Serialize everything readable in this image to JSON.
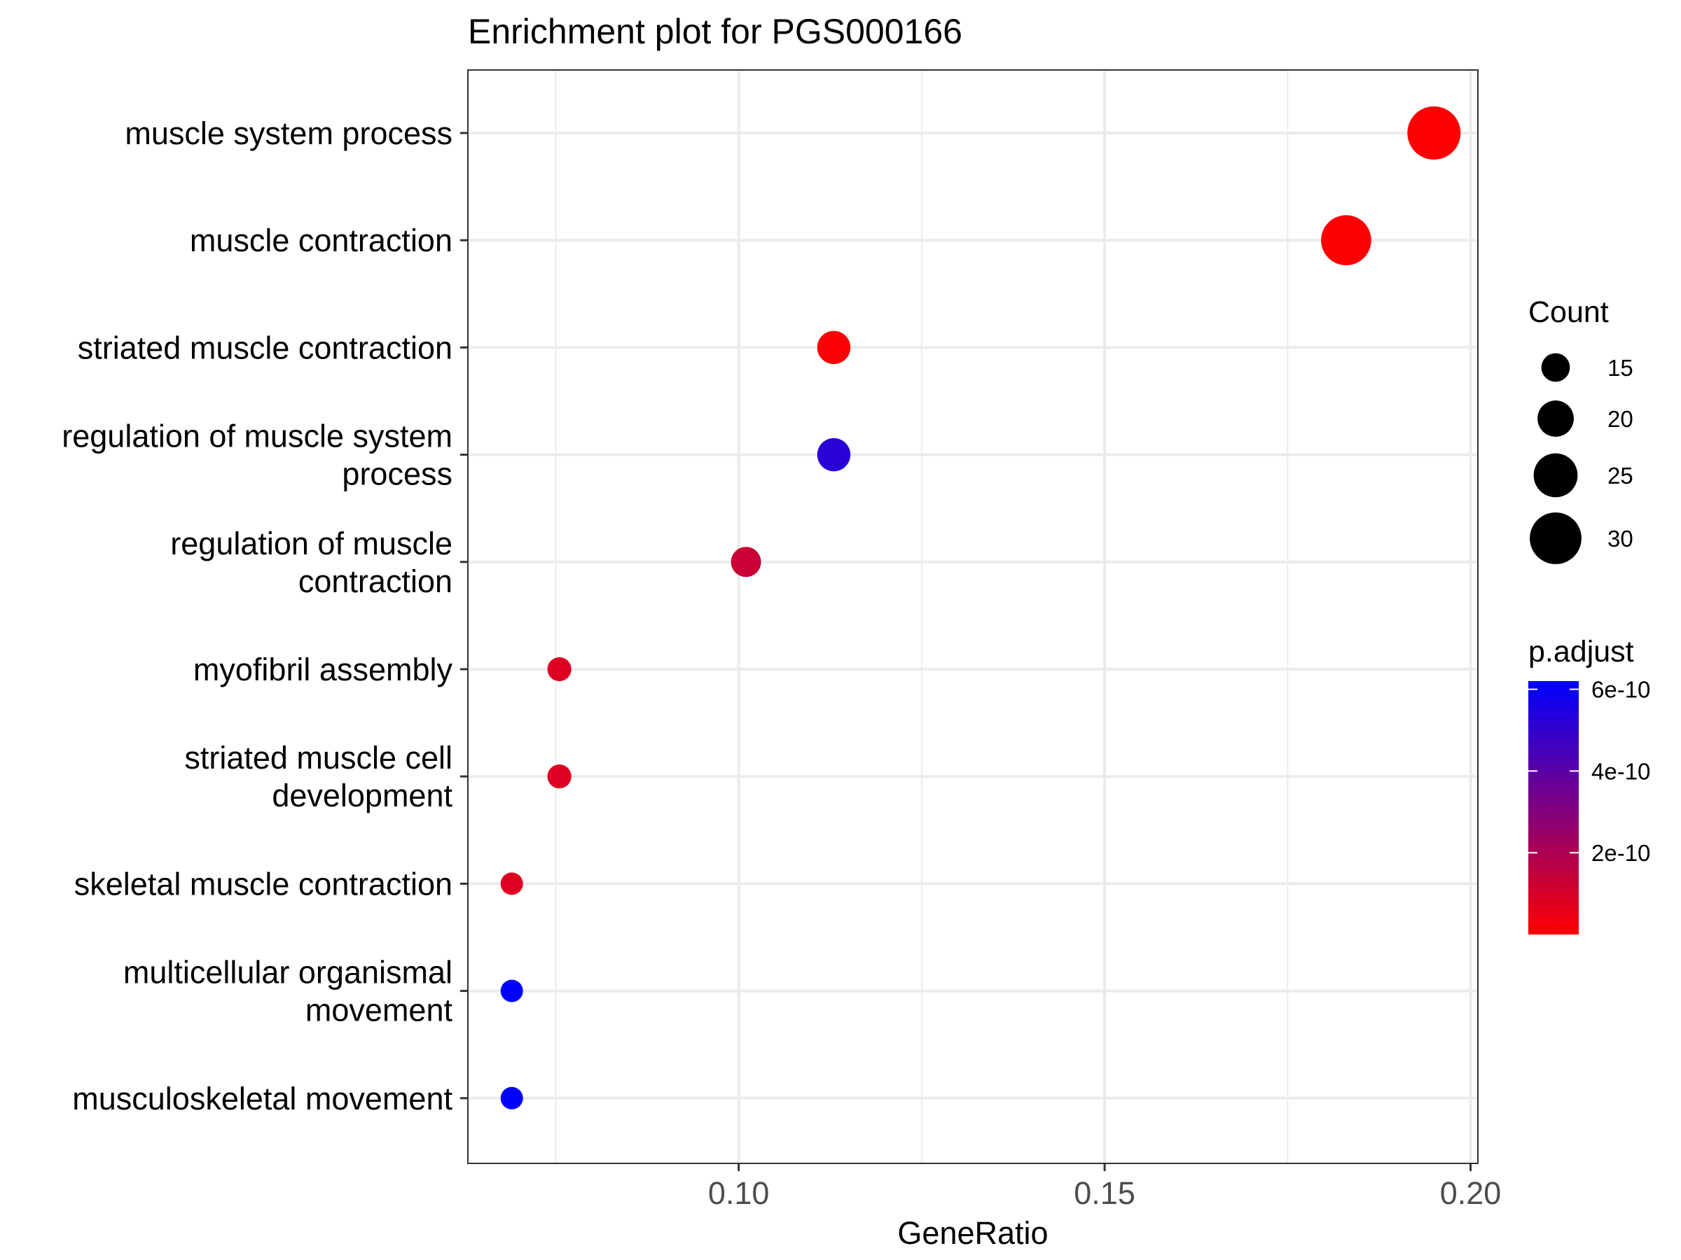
{
  "chart_data": {
    "type": "scatter",
    "title": "Enrichment plot for PGS000166",
    "xlabel": "GeneRatio",
    "ylabel": "",
    "xlim": [
      0.063,
      0.201
    ],
    "xticks": [
      0.1,
      0.15,
      0.2
    ],
    "xtick_labels": [
      "0.10",
      "0.15",
      "0.20"
    ],
    "grid": true,
    "categories": [
      "muscle system process",
      "muscle contraction",
      "striated muscle contraction",
      "regulation of muscle system process",
      "regulation of muscle contraction",
      "myofibril assembly",
      "striated muscle cell development",
      "skeletal muscle contraction",
      "multicellular organismal movement",
      "musculoskeletal movement"
    ],
    "category_label_lines": [
      [
        "muscle system process"
      ],
      [
        "muscle contraction"
      ],
      [
        "striated muscle contraction"
      ],
      [
        "regulation of muscle system",
        "process"
      ],
      [
        "regulation of muscle",
        "contraction"
      ],
      [
        "myofibril assembly"
      ],
      [
        "striated muscle cell",
        "development"
      ],
      [
        "skeletal muscle contraction"
      ],
      [
        "multicellular organismal",
        "movement"
      ],
      [
        "musculoskeletal movement"
      ]
    ],
    "points": [
      {
        "term": "muscle system process",
        "gene_ratio": 0.195,
        "count": 31,
        "p_adjust": 1e-12
      },
      {
        "term": "muscle contraction",
        "gene_ratio": 0.183,
        "count": 29,
        "p_adjust": 5e-12
      },
      {
        "term": "striated muscle contraction",
        "gene_ratio": 0.113,
        "count": 18,
        "p_adjust": 1e-11
      },
      {
        "term": "regulation of muscle system process",
        "gene_ratio": 0.113,
        "count": 18,
        "p_adjust": 5.2e-10
      },
      {
        "term": "regulation of muscle contraction",
        "gene_ratio": 0.101,
        "count": 16,
        "p_adjust": 1.3e-10
      },
      {
        "term": "myofibril assembly",
        "gene_ratio": 0.0755,
        "count": 12,
        "p_adjust": 8e-11
      },
      {
        "term": "striated muscle cell development",
        "gene_ratio": 0.0755,
        "count": 12,
        "p_adjust": 8e-11
      },
      {
        "term": "skeletal muscle contraction",
        "gene_ratio": 0.069,
        "count": 11,
        "p_adjust": 8e-11
      },
      {
        "term": "multicellular organismal movement",
        "gene_ratio": 0.069,
        "count": 11,
        "p_adjust": 6.2e-10
      },
      {
        "term": "musculoskeletal movement",
        "gene_ratio": 0.069,
        "count": 11,
        "p_adjust": 6.2e-10
      }
    ],
    "size_legend": {
      "title": "Count",
      "values": [
        15,
        20,
        25,
        30
      ],
      "labels": [
        "15",
        "20",
        "25",
        "30"
      ],
      "range": [
        11,
        31
      ]
    },
    "color_legend": {
      "title": "p.adjust",
      "low_color": "#ff0000",
      "high_color": "#0000ff",
      "range": [
        0,
        6.2e-10
      ],
      "breaks": [
        6e-10,
        4e-10,
        2e-10
      ],
      "labels": [
        "6e-10",
        "4e-10",
        "2e-10"
      ]
    },
    "legend_position": "right"
  }
}
